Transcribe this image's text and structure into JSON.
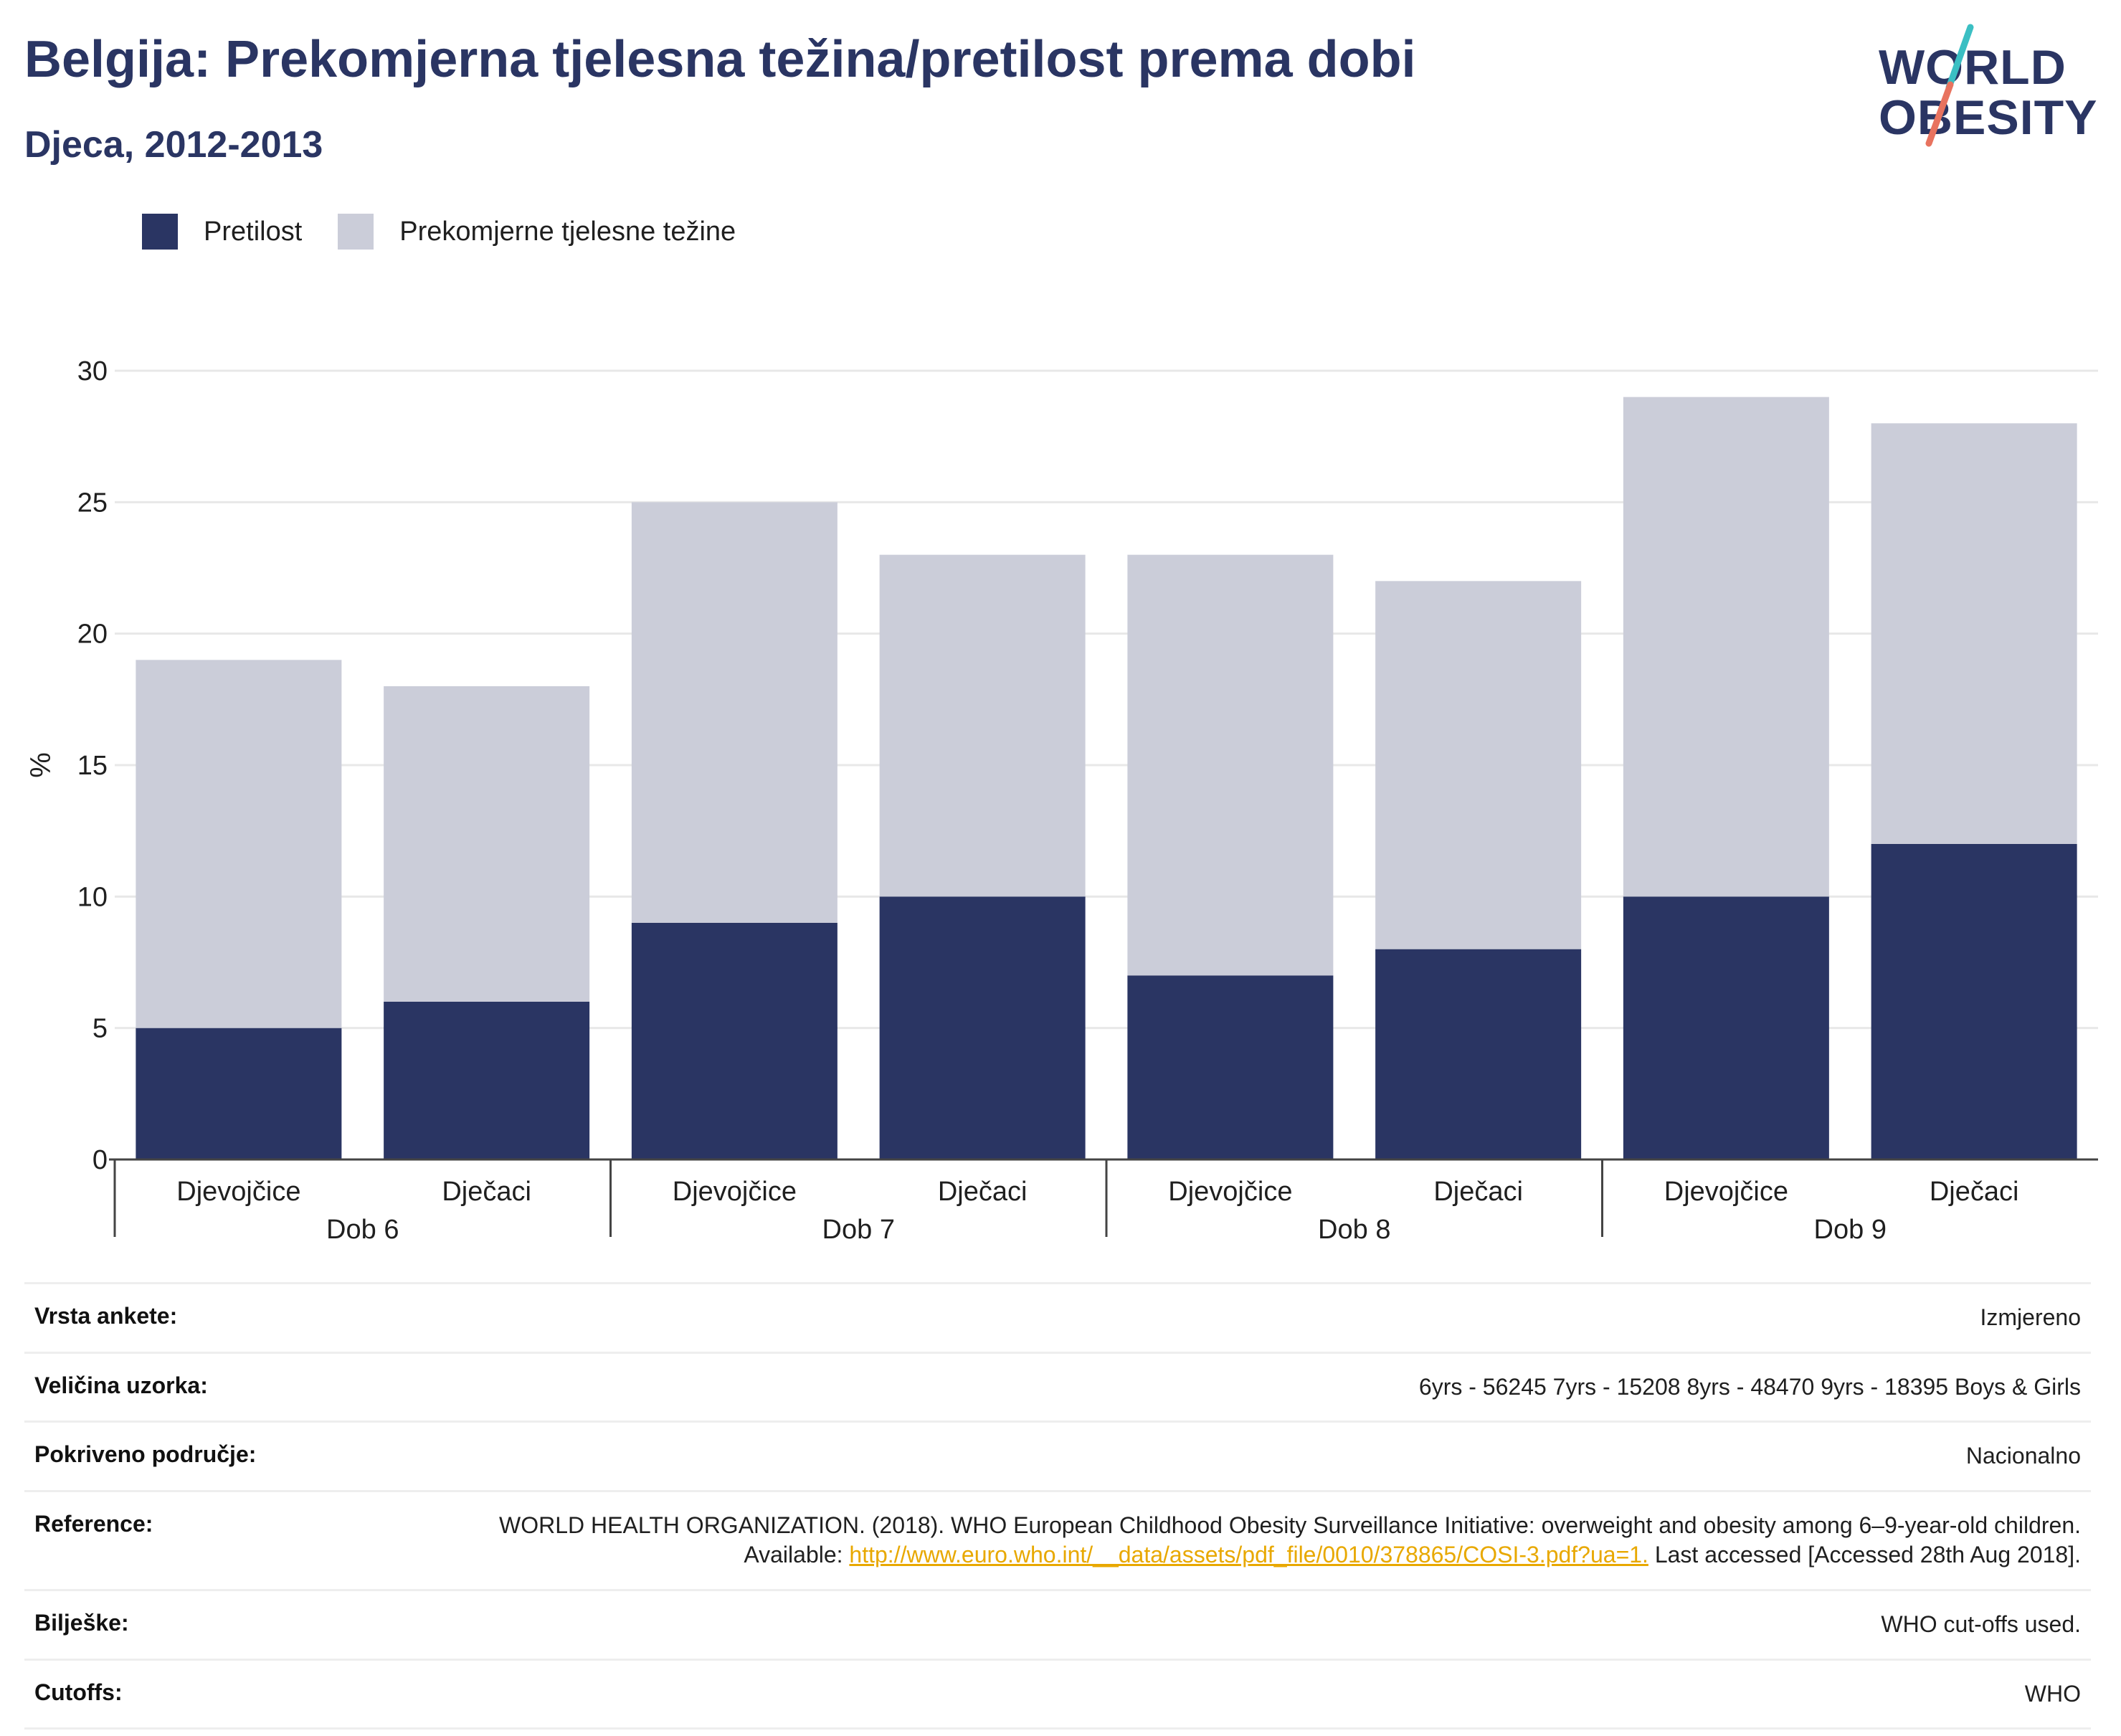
{
  "header": {
    "title": "Belgija: Prekomjerna tjelesna težina/pretilost prema dobi",
    "subtitle": "Djeca, 2012-2013"
  },
  "logo": {
    "line1": "WORLD",
    "line2": "OBESITY",
    "colors": {
      "navy": "#2a3563",
      "teal": "#3bbfc3",
      "coral": "#e8735f"
    }
  },
  "legend": [
    {
      "label": "Pretilost",
      "color": "#2a3563"
    },
    {
      "label": "Prekomjerne tjelesne težine",
      "color": "#cbcdd9"
    }
  ],
  "chart_data": {
    "type": "bar",
    "stacked": true,
    "ylabel": "%",
    "ylim": [
      0,
      30
    ],
    "yticks": [
      0,
      5,
      10,
      15,
      20,
      25,
      30
    ],
    "grid": true,
    "legend_position": "top-left",
    "groups": [
      {
        "label": "Dob 6",
        "categories": [
          "Djevojčice",
          "Dječaci"
        ]
      },
      {
        "label": "Dob 7",
        "categories": [
          "Djevojčice",
          "Dječaci"
        ]
      },
      {
        "label": "Dob 8",
        "categories": [
          "Djevojčice",
          "Dječaci"
        ]
      },
      {
        "label": "Dob 9",
        "categories": [
          "Djevojčice",
          "Dječaci"
        ]
      }
    ],
    "series": [
      {
        "name": "Pretilost",
        "color": "#2a3563",
        "values": [
          5,
          6,
          9,
          10,
          7,
          8,
          10,
          12
        ]
      },
      {
        "name": "Prekomjerne tjelesne težine",
        "color": "#cbcdd9",
        "values": [
          14,
          12,
          16,
          13,
          16,
          14,
          19,
          16
        ]
      }
    ]
  },
  "info": {
    "survey_type": {
      "label": "Vrsta ankete:",
      "value": "Izmjereno"
    },
    "sample_size": {
      "label": "Veličina uzorka:",
      "value": "6yrs - 56245 7yrs - 15208 8yrs - 48470 9yrs - 18395 Boys & Girls"
    },
    "area_covered": {
      "label": "Pokriveno područje:",
      "value": "Nacionalno"
    },
    "reference": {
      "label": "Reference:",
      "text_before": "WORLD HEALTH ORGANIZATION. (2018). WHO European Childhood Obesity Surveillance Initiative: overweight and obesity among 6–9-year-old children. Available:",
      "link": "http://www.euro.who.int/__data/assets/pdf_file/0010/378865/COSI-3.pdf?ua=1.",
      "text_after": "Last accessed [Accessed 28th Aug 2018]."
    },
    "notes": {
      "label": "Bilješke:",
      "value": "WHO cut-offs used."
    },
    "cutoffs": {
      "label": "Cutoffs:",
      "value": "WHO"
    }
  }
}
